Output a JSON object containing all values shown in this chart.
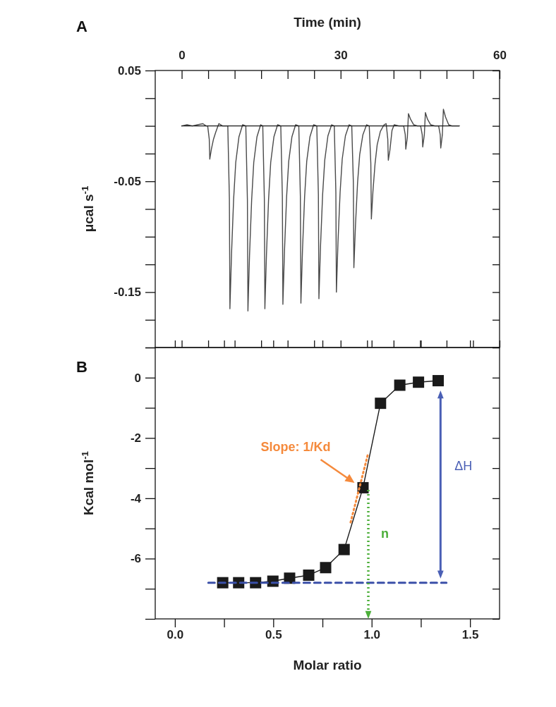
{
  "chart_data": [
    {
      "type": "line",
      "xlabel": "Time (min)",
      "ylabel": "μcal s$^{-1}$",
      "annotations": [
        "A"
      ],
      "xlim": [
        -5,
        60
      ],
      "xticks": [
        0,
        {
          "value": 5,
          "label": null
        },
        {
          "value": 10,
          "label": null
        },
        {
          "value": 15,
          "label": null
        },
        {
          "value": 20,
          "label": null
        },
        {
          "value": 25,
          "label": null
        },
        30,
        {
          "value": 35,
          "label": null
        },
        {
          "value": 40,
          "label": null
        },
        {
          "value": 45,
          "label": null
        },
        {
          "value": 50,
          "label": null
        },
        {
          "value": 55,
          "label": null
        },
        60
      ],
      "ylim": [
        -0.2,
        0.05
      ],
      "yticks": [
        0.05,
        {
          "value": 0.025,
          "label": null
        },
        {
          "value": 0,
          "label": null
        },
        {
          "value": -0.025,
          "label": null
        },
        -0.05,
        {
          "value": -0.075,
          "label": null
        },
        {
          "value": -0.1,
          "label": null
        },
        {
          "value": -0.125,
          "label": null
        },
        -0.15,
        {
          "value": -0.175,
          "label": null
        },
        {
          "value": -0.2,
          "label": null
        }
      ],
      "series": [
        {
          "color": "#4a4a4a",
          "x": [
            0,
            1,
            2,
            3,
            4,
            4.6,
            4.9,
            5.2,
            5.3,
            5.6,
            6.0,
            6.4,
            7.0,
            7.7,
            8.7,
            9.0,
            9.1,
            9.4,
            9.8,
            10.2,
            10.8,
            11.5,
            12.1,
            12.4,
            12.5,
            12.8,
            13.2,
            13.6,
            14.2,
            14.9,
            15.3,
            15.6,
            15.7,
            16.0,
            16.4,
            16.8,
            17.4,
            18.1,
            18.7,
            19.0,
            19.1,
            19.4,
            19.8,
            20.2,
            20.8,
            21.5,
            22.1,
            22.4,
            22.5,
            22.8,
            23.2,
            23.6,
            24.2,
            24.9,
            25.5,
            25.8,
            25.9,
            26.2,
            26.6,
            27.0,
            27.6,
            28.3,
            28.8,
            29.1,
            29.2,
            29.5,
            29.9,
            30.3,
            30.9,
            31.6,
            32.1,
            32.4,
            32.5,
            32.8,
            33.2,
            33.6,
            34.2,
            34.9,
            35.4,
            35.7,
            35.8,
            36.1,
            36.5,
            36.9,
            37.5,
            38.2,
            38.6,
            38.9,
            39.0,
            39.3,
            39.7,
            40.1,
            41.0,
            41.9,
            42.2,
            42.3,
            42.6,
            42.8,
            43.2,
            43.8,
            44.5,
            45.1,
            45.4,
            45.5,
            45.8,
            46.0,
            46.4,
            47.0,
            47.8,
            48.5,
            48.8,
            48.9,
            49.2,
            49.4,
            49.8,
            50.4,
            51.0,
            52.4
          ],
          "values": [
            0,
            0.001,
            0,
            0.001,
            0.002,
            0,
            0,
            -0.012,
            -0.03,
            -0.021,
            -0.012,
            -0.006,
            0.002,
            0,
            0,
            -0.066,
            -0.165,
            -0.116,
            -0.066,
            -0.033,
            -0.01,
            0.001,
            0,
            -0.067,
            -0.167,
            -0.117,
            -0.067,
            -0.033,
            -0.01,
            0.001,
            0,
            -0.066,
            -0.165,
            -0.116,
            -0.066,
            -0.033,
            -0.01,
            0.001,
            0,
            -0.064,
            -0.161,
            -0.113,
            -0.064,
            -0.032,
            -0.01,
            0.001,
            0,
            -0.064,
            -0.16,
            -0.112,
            -0.064,
            -0.032,
            -0.01,
            0.001,
            0,
            -0.062,
            -0.156,
            -0.109,
            -0.062,
            -0.031,
            -0.009,
            0.001,
            0,
            -0.06,
            -0.15,
            -0.105,
            -0.06,
            -0.03,
            -0.009,
            0.001,
            0,
            -0.051,
            -0.128,
            -0.09,
            -0.051,
            -0.026,
            -0.008,
            0.001,
            0,
            -0.034,
            -0.084,
            -0.059,
            -0.034,
            -0.017,
            -0.005,
            0.001,
            0.002,
            -0.012,
            -0.031,
            -0.022,
            -0.004,
            0.001,
            0,
            0,
            -0.008,
            -0.021,
            -0.01,
            0.011,
            0.006,
            0.001,
            0,
            0,
            -0.008,
            -0.019,
            -0.008,
            0.012,
            0.006,
            0.001,
            0,
            0,
            -0.008,
            -0.02,
            -0.008,
            0.015,
            0.008,
            0.001,
            0,
            0
          ]
        },
        {
          "color": "#1a1a1a",
          "x": [
            0,
            52.4
          ],
          "values": [
            0,
            0
          ]
        }
      ]
    },
    {
      "type": "line",
      "xlabel": "Molar ratio",
      "ylabel": "Kcal mol$^{-1}$",
      "marker": "square",
      "annotations": [
        "B",
        "Slope: 1/Kd",
        "n",
        "ΔH"
      ],
      "xlim": [
        -0.1,
        1.65
      ],
      "xticks": [
        {
          "value": 0,
          "label": "0.0"
        },
        {
          "value": 0.25,
          "label": null
        },
        0.5,
        {
          "value": 0.75,
          "label": null
        },
        {
          "value": 1,
          "label": "1.0"
        },
        {
          "value": 1.25,
          "label": null
        },
        1.5
      ],
      "ylim": [
        -8,
        1
      ],
      "yticks": [
        {
          "value": 1,
          "label": null
        },
        0,
        {
          "value": -1,
          "label": null
        },
        -2,
        {
          "value": -3,
          "label": null
        },
        -4,
        {
          "value": -5,
          "label": null
        },
        -6,
        {
          "value": -7,
          "label": null
        },
        {
          "value": -8,
          "label": null
        }
      ],
      "series": [
        {
          "color": "#1a1a1a",
          "x": [
            0.243,
            0.324,
            0.41,
            0.498,
            0.583,
            0.68,
            0.766,
            0.86,
            0.956,
            1.045,
            1.143,
            1.238,
            1.338
          ],
          "values": [
            -6.8,
            -6.8,
            -6.8,
            -6.75,
            -6.65,
            -6.55,
            -6.3,
            -5.7,
            -3.65,
            -0.85,
            -0.25,
            -0.15,
            -0.1
          ]
        },
        {
          "color": "#3a4fa8",
          "x": [
            0.17,
            1.38
          ],
          "values": [
            -6.8,
            -6.8
          ],
          "line_style": "dashed",
          "marker": "none"
        },
        {
          "color": "#f58a3c",
          "x": [
            0.893,
            0.983
          ],
          "values": [
            -4.8,
            -2.49
          ],
          "line_style": "dotted",
          "marker": "none"
        }
      ]
    }
  ]
}
